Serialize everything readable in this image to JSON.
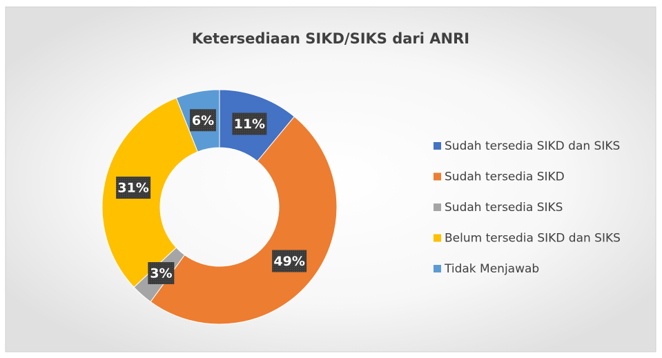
{
  "chart_data": {
    "type": "donut",
    "title": "Ketersediaan SIKD/SIKS dari ANRI",
    "categories": [
      "Sudah tersedia SIKD dan SIKS",
      "Sudah tersedia SIKD",
      "Sudah tersedia SIKS",
      "Belum tersedia SIKD dan SIKS",
      "Tidak Menjawab"
    ],
    "values": [
      11,
      49,
      3,
      31,
      6
    ],
    "value_labels": [
      "11%",
      "49%",
      "3%",
      "31%",
      "6%"
    ],
    "colors": [
      "#4472c4",
      "#ed7d31",
      "#a5a5a5",
      "#ffc000",
      "#5b9bd5"
    ],
    "legend": "right"
  }
}
